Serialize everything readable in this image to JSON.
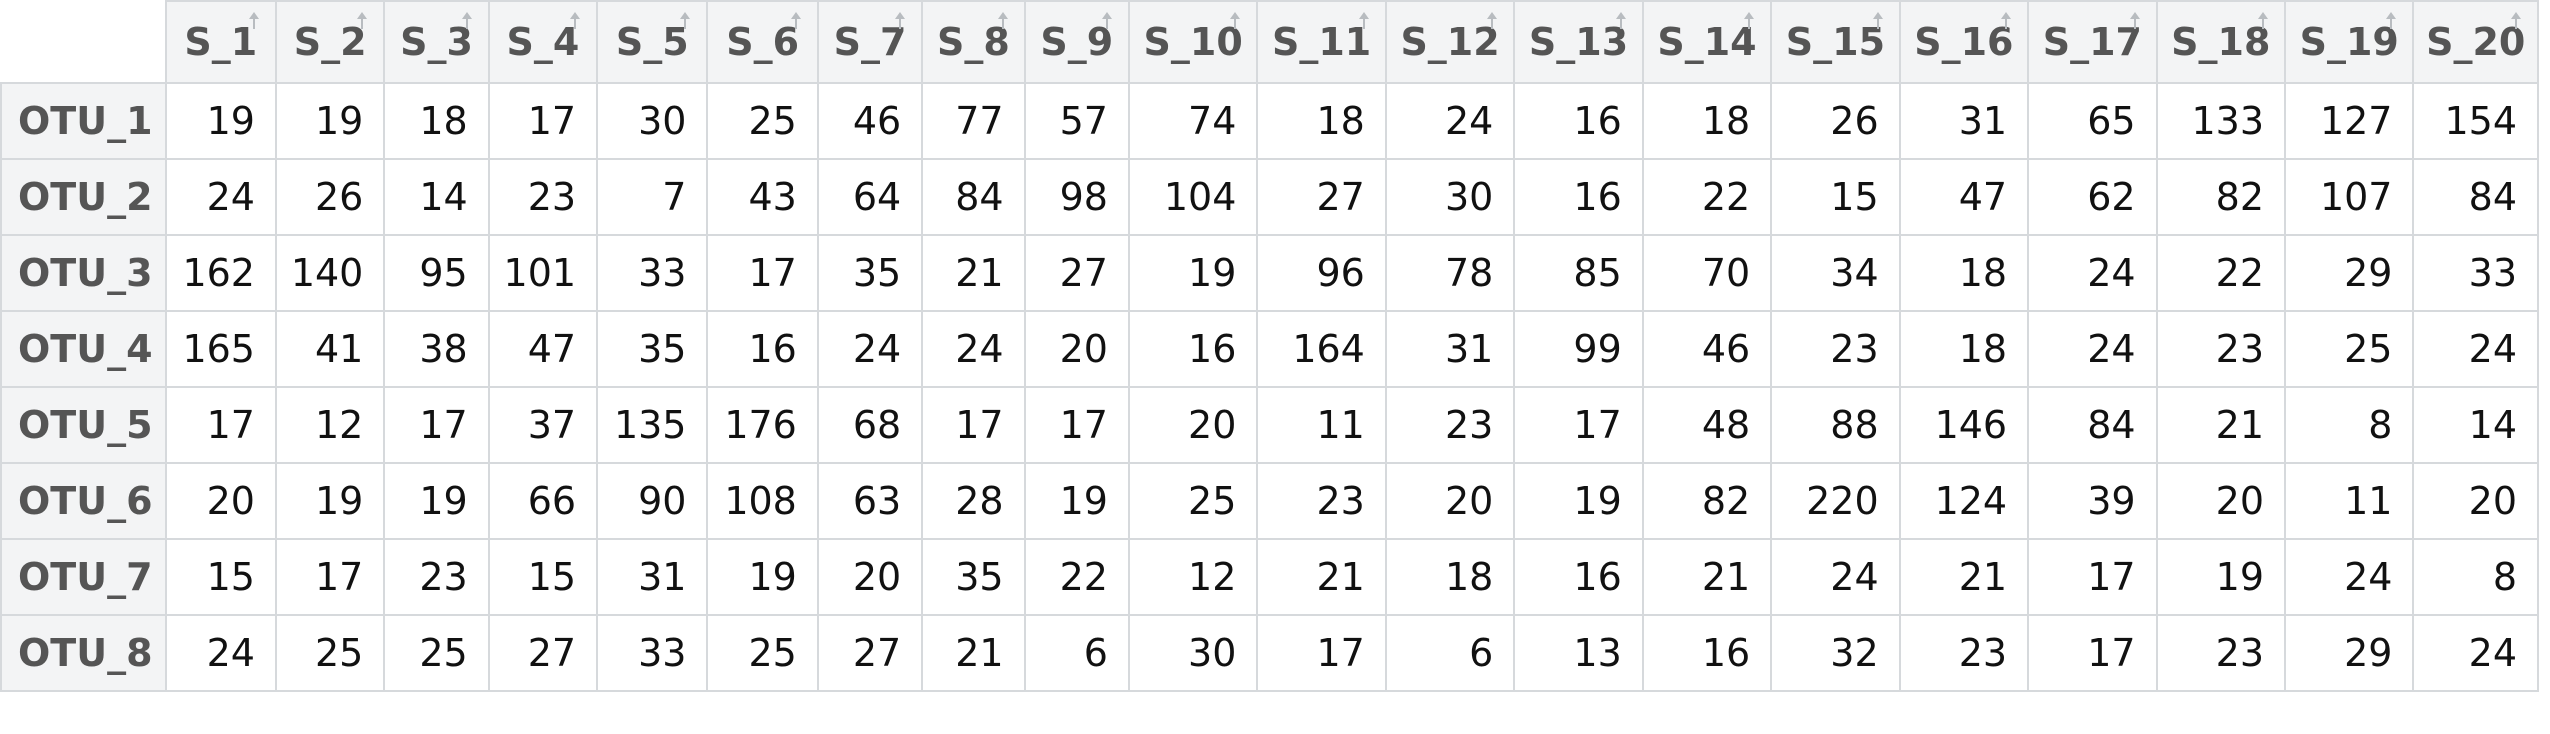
{
  "table": {
    "columns": [
      "S_1",
      "S_2",
      "S_3",
      "S_4",
      "S_5",
      "S_6",
      "S_7",
      "S_8",
      "S_9",
      "S_10",
      "S_11",
      "S_12",
      "S_13",
      "S_14",
      "S_15",
      "S_16",
      "S_17",
      "S_18",
      "S_19",
      "S_20"
    ],
    "rows": [
      {
        "label": "OTU_1",
        "values": [
          19,
          19,
          18,
          17,
          30,
          25,
          46,
          77,
          57,
          74,
          18,
          24,
          16,
          18,
          26,
          31,
          65,
          133,
          127,
          154
        ]
      },
      {
        "label": "OTU_2",
        "values": [
          24,
          26,
          14,
          23,
          7,
          43,
          64,
          84,
          98,
          104,
          27,
          30,
          16,
          22,
          15,
          47,
          62,
          82,
          107,
          84
        ]
      },
      {
        "label": "OTU_3",
        "values": [
          162,
          140,
          95,
          101,
          33,
          17,
          35,
          21,
          27,
          19,
          96,
          78,
          85,
          70,
          34,
          18,
          24,
          22,
          29,
          33
        ]
      },
      {
        "label": "OTU_4",
        "values": [
          165,
          41,
          38,
          47,
          35,
          16,
          24,
          24,
          20,
          16,
          164,
          31,
          99,
          46,
          23,
          18,
          24,
          23,
          25,
          24
        ]
      },
      {
        "label": "OTU_5",
        "values": [
          17,
          12,
          17,
          37,
          135,
          176,
          68,
          17,
          17,
          20,
          11,
          23,
          17,
          48,
          88,
          146,
          84,
          21,
          8,
          14
        ]
      },
      {
        "label": "OTU_6",
        "values": [
          20,
          19,
          19,
          66,
          90,
          108,
          63,
          28,
          19,
          25,
          23,
          20,
          19,
          82,
          220,
          124,
          39,
          20,
          11,
          20
        ]
      },
      {
        "label": "OTU_7",
        "values": [
          15,
          17,
          23,
          15,
          31,
          19,
          20,
          35,
          22,
          12,
          21,
          18,
          16,
          21,
          24,
          21,
          17,
          19,
          24,
          8
        ]
      },
      {
        "label": "OTU_8",
        "values": [
          24,
          25,
          25,
          27,
          33,
          25,
          27,
          21,
          6,
          30,
          17,
          6,
          13,
          16,
          32,
          23,
          17,
          23,
          29,
          24
        ]
      }
    ]
  }
}
